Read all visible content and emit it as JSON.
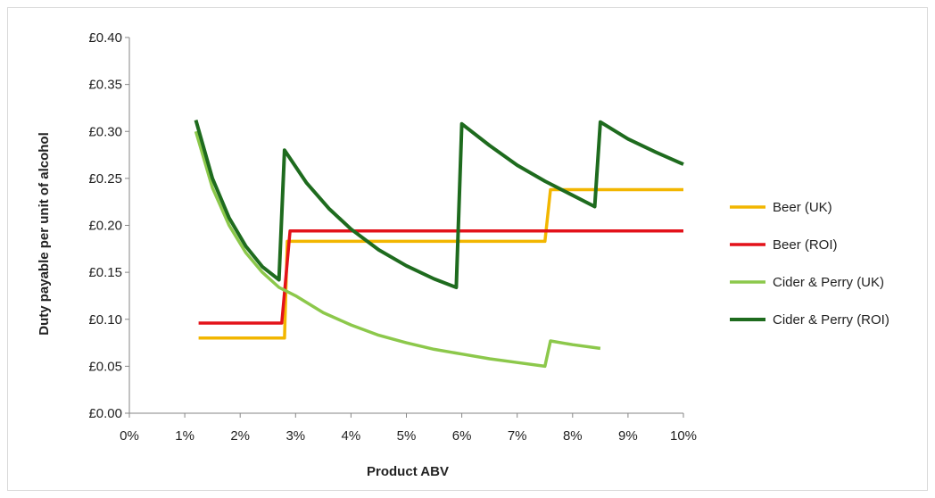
{
  "chart_data": {
    "type": "line",
    "title": "",
    "xlabel": "Product ABV",
    "ylabel": "Duty payable per unit of alcohol",
    "xlim": [
      0,
      10
    ],
    "ylim": [
      0,
      0.4
    ],
    "x_ticks": [
      0,
      1,
      2,
      3,
      4,
      5,
      6,
      7,
      8,
      9,
      10
    ],
    "x_tick_labels": [
      "0%",
      "1%",
      "2%",
      "3%",
      "4%",
      "5%",
      "6%",
      "7%",
      "8%",
      "9%",
      "10%"
    ],
    "y_ticks": [
      0,
      0.05,
      0.1,
      0.15,
      0.2,
      0.25,
      0.3,
      0.35,
      0.4
    ],
    "y_tick_labels": [
      "£0.00",
      "£0.05",
      "£0.10",
      "£0.15",
      "£0.20",
      "£0.25",
      "£0.30",
      "£0.35",
      "£0.40"
    ],
    "grid": false,
    "legend_position": "right",
    "series": [
      {
        "name": "Beer (UK)",
        "color": "#f2b600",
        "points": [
          [
            1.25,
            0.08
          ],
          [
            2.8,
            0.08
          ],
          [
            2.85,
            0.183
          ],
          [
            7.5,
            0.183
          ],
          [
            7.6,
            0.238
          ],
          [
            10.0,
            0.238
          ]
        ]
      },
      {
        "name": "Beer (ROI)",
        "color": "#e3121a",
        "points": [
          [
            1.25,
            0.096
          ],
          [
            2.75,
            0.096
          ],
          [
            2.9,
            0.194
          ],
          [
            10.0,
            0.194
          ]
        ]
      },
      {
        "name": "Cider & Perry (UK)",
        "color": "#8cc84b",
        "points": [
          [
            1.2,
            0.3
          ],
          [
            1.5,
            0.24
          ],
          [
            1.8,
            0.2
          ],
          [
            2.1,
            0.171
          ],
          [
            2.4,
            0.15
          ],
          [
            2.7,
            0.134
          ],
          [
            3.0,
            0.125
          ],
          [
            3.5,
            0.107
          ],
          [
            4.0,
            0.094
          ],
          [
            4.5,
            0.083
          ],
          [
            5.0,
            0.075
          ],
          [
            5.5,
            0.068
          ],
          [
            6.0,
            0.063
          ],
          [
            6.5,
            0.058
          ],
          [
            7.0,
            0.054
          ],
          [
            7.5,
            0.05
          ],
          [
            7.6,
            0.077
          ],
          [
            8.0,
            0.073
          ],
          [
            8.5,
            0.069
          ]
        ]
      },
      {
        "name": "Cider & Perry (ROI)",
        "color": "#1e6b1e",
        "points": [
          [
            1.2,
            0.312
          ],
          [
            1.5,
            0.25
          ],
          [
            1.8,
            0.208
          ],
          [
            2.1,
            0.178
          ],
          [
            2.4,
            0.156
          ],
          [
            2.7,
            0.142
          ],
          [
            2.8,
            0.28
          ],
          [
            3.2,
            0.245
          ],
          [
            3.6,
            0.218
          ],
          [
            4.0,
            0.196
          ],
          [
            4.5,
            0.174
          ],
          [
            5.0,
            0.157
          ],
          [
            5.5,
            0.143
          ],
          [
            5.9,
            0.134
          ],
          [
            6.0,
            0.308
          ],
          [
            6.5,
            0.285
          ],
          [
            7.0,
            0.264
          ],
          [
            7.5,
            0.247
          ],
          [
            8.0,
            0.232
          ],
          [
            8.4,
            0.22
          ],
          [
            8.5,
            0.31
          ],
          [
            9.0,
            0.292
          ],
          [
            9.5,
            0.278
          ],
          [
            10.0,
            0.265
          ]
        ]
      }
    ]
  }
}
